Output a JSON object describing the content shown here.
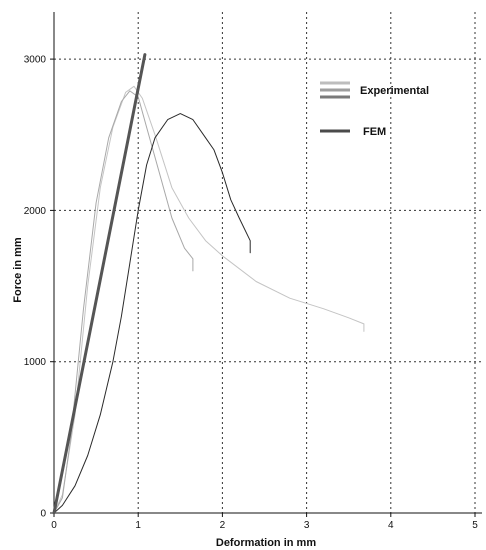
{
  "chart_data": {
    "type": "line",
    "xlabel": "Deformation in mm",
    "ylabel": "Force in mm",
    "xlim": [
      0,
      5
    ],
    "ylim": [
      0,
      3300
    ],
    "xticks": [
      "0",
      "1",
      "2",
      "3",
      "4",
      "5"
    ],
    "yticks": [
      "0",
      "1000",
      "2000",
      "3000"
    ],
    "grid": true,
    "legend_position": "top-right",
    "legend": [
      {
        "label": "Experimental",
        "colors": [
          "#bdbdbd",
          "#9e9e9e",
          "#7a7a7a"
        ]
      },
      {
        "label": "FEM",
        "colors": [
          "#4a4a4a"
        ]
      }
    ],
    "series": [
      {
        "name": "FEM",
        "color": "#555555",
        "width": 3,
        "points": [
          [
            0,
            0
          ],
          [
            1.08,
            3030
          ]
        ]
      },
      {
        "name": "Experimental",
        "color": "#c4c4c4",
        "width": 1,
        "points": [
          [
            0,
            0
          ],
          [
            0.1,
            120
          ],
          [
            0.25,
            650
          ],
          [
            0.4,
            1500
          ],
          [
            0.55,
            2150
          ],
          [
            0.7,
            2550
          ],
          [
            0.85,
            2780
          ],
          [
            0.95,
            2820
          ],
          [
            1.05,
            2740
          ],
          [
            1.2,
            2500
          ],
          [
            1.4,
            2150
          ],
          [
            1.6,
            1950
          ],
          [
            1.8,
            1800
          ],
          [
            2.0,
            1700
          ],
          [
            2.4,
            1530
          ],
          [
            2.8,
            1420
          ],
          [
            3.2,
            1350
          ],
          [
            3.5,
            1290
          ],
          [
            3.68,
            1250
          ],
          [
            3.68,
            1200
          ]
        ]
      },
      {
        "name": "Experimental",
        "color": "#a8a8a8",
        "width": 1,
        "points": [
          [
            0,
            0
          ],
          [
            0.1,
            100
          ],
          [
            0.2,
            500
          ],
          [
            0.35,
            1350
          ],
          [
            0.5,
            2050
          ],
          [
            0.65,
            2480
          ],
          [
            0.8,
            2720
          ],
          [
            0.9,
            2790
          ],
          [
            1.0,
            2750
          ],
          [
            1.1,
            2550
          ],
          [
            1.25,
            2250
          ],
          [
            1.4,
            1950
          ],
          [
            1.55,
            1750
          ],
          [
            1.65,
            1680
          ],
          [
            1.65,
            1600
          ]
        ]
      },
      {
        "name": "Experimental",
        "color": "#2a2a2a",
        "width": 1,
        "points": [
          [
            0,
            0
          ],
          [
            0.1,
            50
          ],
          [
            0.25,
            180
          ],
          [
            0.4,
            380
          ],
          [
            0.55,
            650
          ],
          [
            0.7,
            1000
          ],
          [
            0.8,
            1300
          ],
          [
            0.9,
            1650
          ],
          [
            1.0,
            2000
          ],
          [
            1.1,
            2300
          ],
          [
            1.2,
            2480
          ],
          [
            1.35,
            2600
          ],
          [
            1.5,
            2640
          ],
          [
            1.65,
            2600
          ],
          [
            1.8,
            2480
          ],
          [
            1.9,
            2400
          ],
          [
            2.0,
            2250
          ],
          [
            2.1,
            2070
          ],
          [
            2.2,
            1950
          ],
          [
            2.33,
            1800
          ],
          [
            2.33,
            1720
          ]
        ]
      }
    ]
  }
}
